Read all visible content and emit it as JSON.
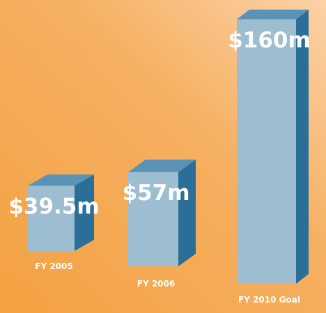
{
  "chart_data": {
    "type": "bar3d",
    "categories": [
      "FY 2005",
      "FY 2006",
      "FY 2010 Goal"
    ],
    "values": [
      39.5,
      57,
      160
    ],
    "value_labels": [
      "$39.5m",
      "$57m",
      "$160m"
    ],
    "color": "#9dbdd0"
  }
}
